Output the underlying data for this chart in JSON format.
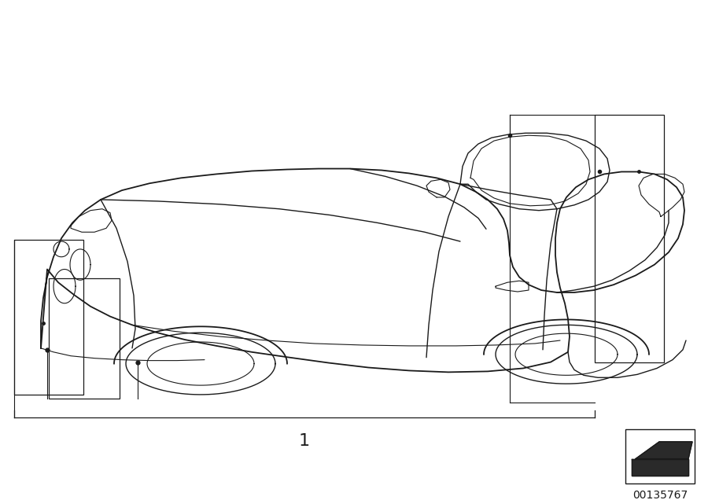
{
  "bg_color": "#ffffff",
  "line_color": "#1a1a1a",
  "part_number": "00135767",
  "label_1": "1"
}
